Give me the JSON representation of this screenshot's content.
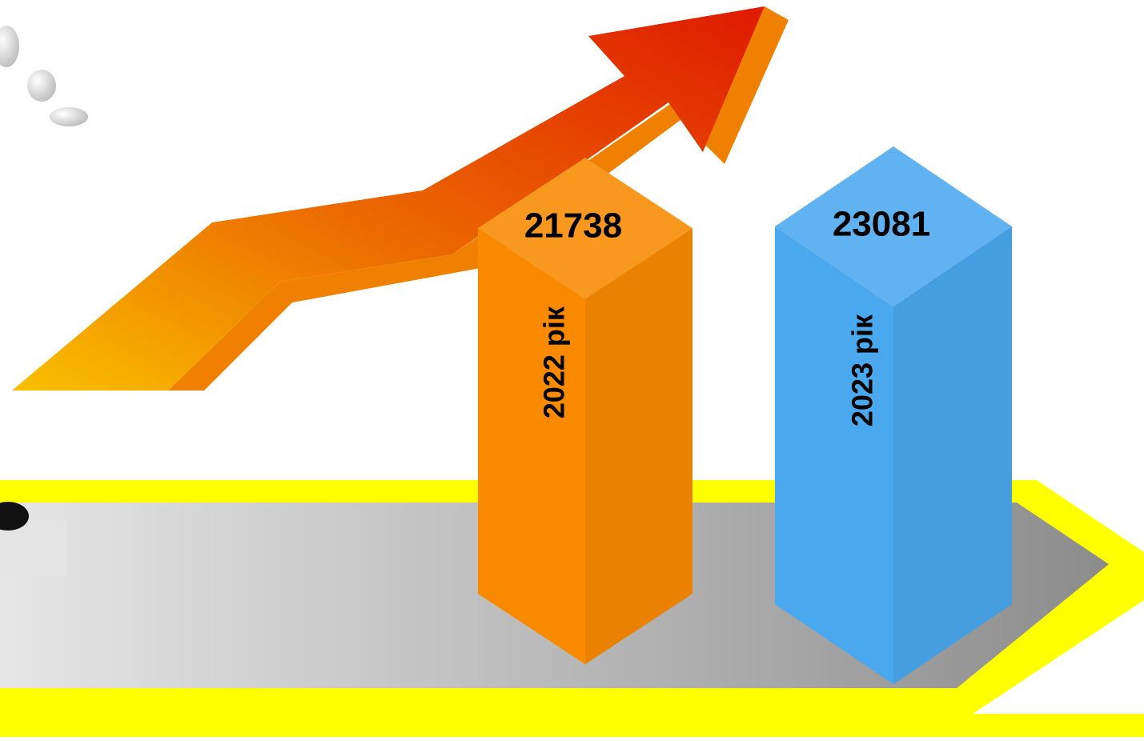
{
  "chart_data": {
    "type": "bar3d",
    "categories": [
      "2022 рік",
      "2023 рік"
    ],
    "values": [
      21738,
      23081
    ],
    "colors": [
      "#f98a00",
      "#4aa8ee"
    ]
  }
}
